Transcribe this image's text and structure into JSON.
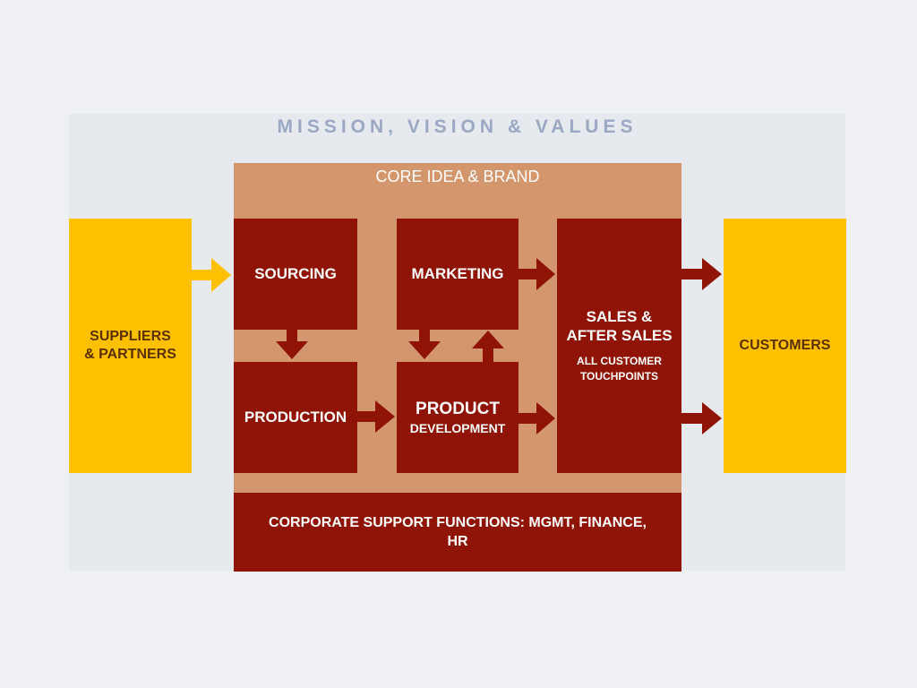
{
  "header": {
    "mission": "MISSION, VISION & VALUES"
  },
  "core": {
    "title": "CORE IDEA & BRAND"
  },
  "nodes": {
    "suppliers": "SUPPLIERS\n& PARTNERS",
    "sourcing": "SOURCING",
    "marketing": "MARKETING",
    "production": "PRODUCTION",
    "product_main": "PRODUCT",
    "product_sub": "DEVELOPMENT",
    "sales_main": "SALES &\nAFTER SALES",
    "sales_sub": "ALL CUSTOMER\nTOUCHPOINTS",
    "customers": "CUSTOMERS",
    "support": "CORPORATE SUPPORT FUNCTIONS: MGMT, FINANCE,\nHR"
  },
  "colors": {
    "dark_red": "#8f1405",
    "core_bg": "#d4976d",
    "yellow": "#ffc000",
    "mission_text": "#9aa8c4",
    "panel": "#e6e9ee"
  },
  "edges": [
    {
      "from": "suppliers",
      "to": "sourcing"
    },
    {
      "from": "sourcing",
      "to": "production"
    },
    {
      "from": "marketing",
      "to": "product_development"
    },
    {
      "from": "product_development",
      "to": "marketing"
    },
    {
      "from": "marketing",
      "to": "sales"
    },
    {
      "from": "production",
      "to": "product_development"
    },
    {
      "from": "product_development",
      "to": "sales"
    },
    {
      "from": "sales",
      "to": "customers"
    },
    {
      "from": "sales",
      "to": "customers"
    }
  ]
}
